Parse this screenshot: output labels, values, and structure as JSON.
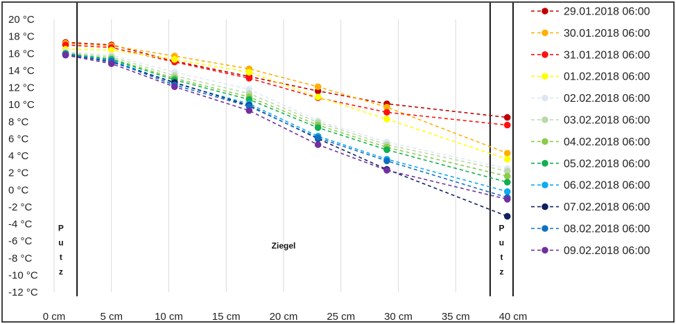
{
  "chart_data": {
    "type": "line",
    "title": "",
    "xlabel": "",
    "ylabel": "",
    "x": [
      1,
      5,
      10.5,
      17,
      23,
      29,
      39.5
    ],
    "x_ticks": [
      "0 cm",
      "5 cm",
      "10 cm",
      "15 cm",
      "20 cm",
      "25 cm",
      "30 cm",
      "35 cm",
      "40 cm"
    ],
    "x_tick_values": [
      0,
      5,
      10,
      15,
      20,
      25,
      30,
      35,
      40
    ],
    "xlim": [
      0,
      40
    ],
    "y_ticks": [
      "20 °C",
      "18 °C",
      "16 °C",
      "14 °C",
      "12 °C",
      "10 °C",
      "8 °C",
      "6 °C",
      "4 °C",
      "2 °C",
      "0 °C",
      "-2 °C",
      "-4 °C",
      "-6 °C",
      "-8 °C",
      "-10 °C",
      "-12 °C"
    ],
    "y_tick_values": [
      20,
      18,
      16,
      14,
      12,
      10,
      8,
      6,
      4,
      2,
      0,
      -2,
      -4,
      -6,
      -8,
      -10,
      -12
    ],
    "ylim": [
      -12,
      20
    ],
    "grid": "vertical",
    "legend_position": "right",
    "boundaries_cm": [
      2,
      38,
      40
    ],
    "zones": [
      {
        "letters": [
          "P",
          "u",
          "t",
          "z"
        ],
        "x": 0.6
      },
      {
        "label": "Ziegel",
        "x": 20
      },
      {
        "letters": [
          "P",
          "u",
          "t",
          "z"
        ],
        "x": 39
      }
    ],
    "series": [
      {
        "name": "29.01.2018 06:00",
        "color": "#c00000",
        "values": [
          17.3,
          17.0,
          15.1,
          13.3,
          11.6,
          10.1,
          8.5
        ]
      },
      {
        "name": "30.01.2018 06:00",
        "color": "#ffb000",
        "values": [
          17.2,
          16.9,
          15.7,
          14.2,
          12.1,
          9.7,
          4.3
        ]
      },
      {
        "name": "31.01.2018 06:00",
        "color": "#ff1010",
        "values": [
          17.0,
          16.7,
          15.0,
          13.1,
          10.8,
          9.1,
          7.6
        ]
      },
      {
        "name": "01.02.2018 06:00",
        "color": "#ffff00",
        "values": [
          16.5,
          16.4,
          15.3,
          13.8,
          10.9,
          8.3,
          3.6
        ]
      },
      {
        "name": "02.02.2018 06:00",
        "color": "#dde7f3",
        "values": [
          16.2,
          15.8,
          13.8,
          11.8,
          8.1,
          5.6,
          2.5
        ]
      },
      {
        "name": "03.02.2018 06:00",
        "color": "#b9d9a8",
        "values": [
          16.1,
          15.6,
          13.4,
          11.3,
          7.9,
          5.3,
          2.2
        ]
      },
      {
        "name": "04.02.2018 06:00",
        "color": "#8bcc4a",
        "values": [
          16.0,
          15.4,
          13.1,
          10.9,
          7.6,
          5.0,
          1.6
        ]
      },
      {
        "name": "05.02.2018 06:00",
        "color": "#10b050",
        "values": [
          16.0,
          15.3,
          12.9,
          10.6,
          7.3,
          4.7,
          0.9
        ]
      },
      {
        "name": "06.02.2018 06:00",
        "color": "#10aaf0",
        "values": [
          15.9,
          15.2,
          12.5,
          10.1,
          6.3,
          3.6,
          -0.2
        ]
      },
      {
        "name": "07.02.2018 06:00",
        "color": "#102060",
        "values": [
          15.9,
          15.0,
          12.6,
          9.9,
          6.0,
          2.4,
          -3.1
        ]
      },
      {
        "name": "08.02.2018 06:00",
        "color": "#1070c0",
        "values": [
          15.9,
          15.1,
          12.3,
          9.8,
          6.1,
          3.4,
          -0.9
        ]
      },
      {
        "name": "09.02.2018 06:00",
        "color": "#7030a0",
        "values": [
          15.8,
          14.8,
          12.1,
          9.3,
          5.3,
          2.3,
          -1.1
        ]
      }
    ]
  }
}
